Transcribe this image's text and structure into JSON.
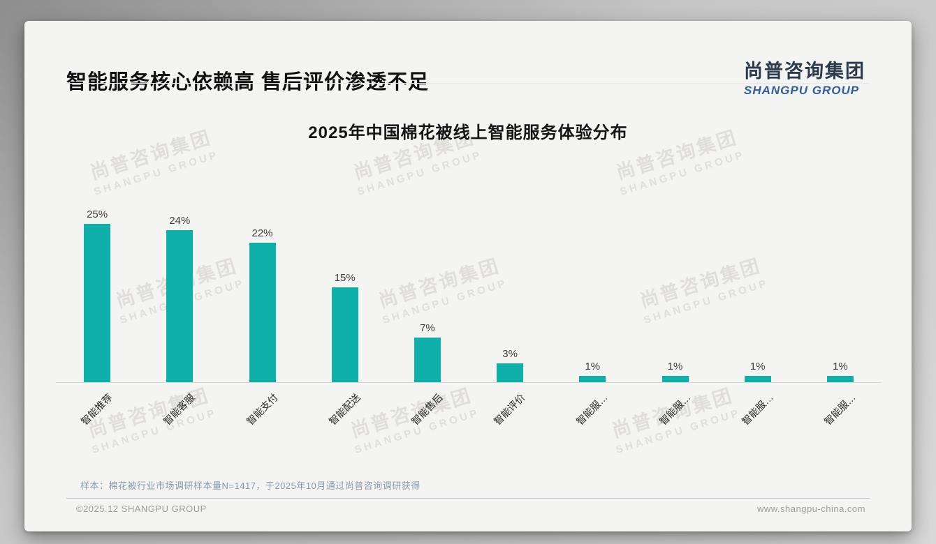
{
  "page": {
    "title": "智能服务核心依赖高 售后评价渗透不足",
    "logo": {
      "cn": "尚普咨询集团",
      "en": "SHANGPU GROUP"
    },
    "watermark": {
      "cn": "尚普咨询集团",
      "en": "SHANGPU GROUP"
    },
    "note": "样本：棉花被行业市场调研样本量N=1417，于2025年10月通过尚普咨询调研获得",
    "footer_left": "©2025.12 SHANGPU GROUP",
    "footer_right": "www.shangpu-china.com"
  },
  "chart_data": {
    "type": "bar",
    "title": "2025年中国棉花被线上智能服务体验分布",
    "categories": [
      "智能推荐",
      "智能客服",
      "智能支付",
      "智能配送",
      "智能售后",
      "智能评价",
      "智能服…",
      "智能服…",
      "智能服…",
      "智能服…"
    ],
    "values": [
      25,
      24,
      22,
      15,
      7,
      3,
      1,
      1,
      1,
      1
    ],
    "data_labels": [
      "25%",
      "24%",
      "22%",
      "15%",
      "7%",
      "3%",
      "1%",
      "1%",
      "1%",
      "1%"
    ],
    "unit": "%",
    "bar_color": "#0fb0a9",
    "ylim": [
      0,
      27
    ],
    "grid": false,
    "legend": false,
    "xlabel": "",
    "ylabel": ""
  }
}
